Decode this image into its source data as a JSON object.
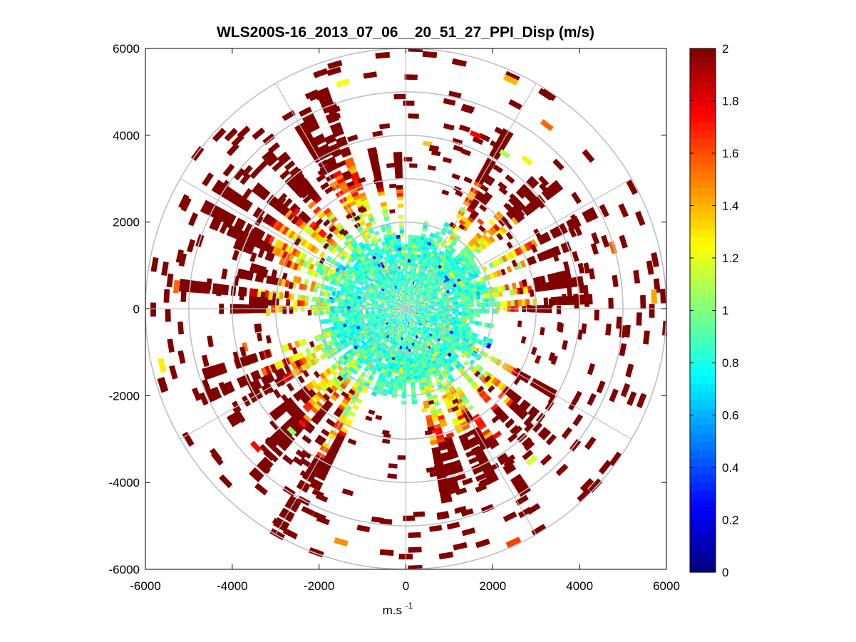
{
  "chart_data": {
    "type": "polar-ppi-scatter",
    "title": "WLS200S-16_2013_07_06__20_51_27_PPI_Disp (m/s)",
    "xlabel": "m.s",
    "xlabel_superscript": "-1",
    "ylabel": "",
    "xlim": [
      -6000,
      6000
    ],
    "ylim": [
      -6000,
      6000
    ],
    "x_ticks": [
      "-6000",
      "-4000",
      "-2000",
      "0",
      "2000",
      "4000",
      "6000"
    ],
    "y_ticks": [
      "6000",
      "4000",
      "2000",
      "0",
      "-2000",
      "-4000",
      "-6000"
    ],
    "range_rings_m": [
      1000,
      2000,
      3000,
      4000,
      5000,
      6000
    ],
    "spoke_angles_deg": [
      0,
      30,
      60,
      90,
      120,
      150,
      180,
      210,
      240,
      270,
      300,
      330
    ],
    "colorbar": {
      "colormap": "jet",
      "min": 0,
      "max": 2,
      "tick_labels": [
        "0",
        "0.2",
        "0.4",
        "0.6",
        "0.8",
        "1",
        "1.2",
        "1.4",
        "1.6",
        "1.8",
        "2"
      ]
    },
    "field_summary": {
      "core_radius_m": 2000,
      "core_value_range": [
        0.7,
        1.0
      ],
      "outer_value": 2.0,
      "dense_sectors_deg": [
        {
          "from": 90,
          "to": 180,
          "note": "western and north-western rays extend to about 3500 m"
        },
        {
          "from": 195,
          "to": 245,
          "note": "south-western echoes out to about 5700 m"
        },
        {
          "from": 355,
          "to": 60,
          "note": "northern and north-eastern rays to about 4000 m"
        },
        {
          "from": 280,
          "to": 330,
          "note": "south-eastern rays to about 3300 m"
        }
      ],
      "colors": {
        "ring": "#c0c0c0",
        "spoke": "#c0c0c0",
        "sparse_cell": "#800000"
      }
    }
  }
}
